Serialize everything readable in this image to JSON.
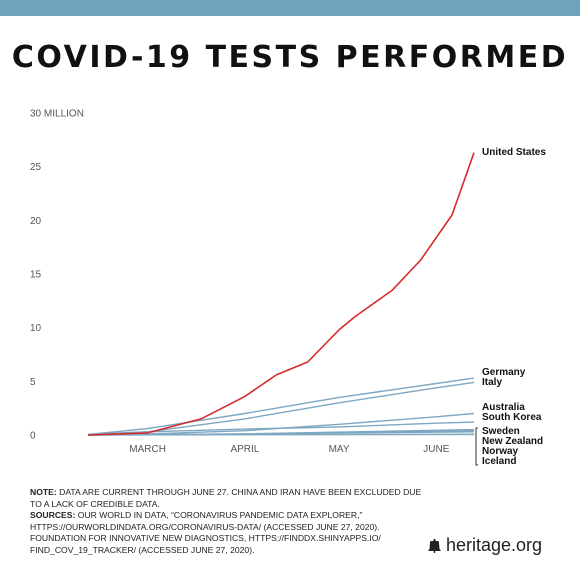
{
  "title": "COVID-19 TESTS PERFORMED",
  "colors": {
    "topbar": "#6fa3bd",
    "us": "#d62b2b",
    "others": "#7ea7c2",
    "axis": "#cfd8de"
  },
  "chart_data": {
    "type": "line",
    "ylim": [
      0,
      30
    ],
    "y_ticks": [
      0,
      5,
      10,
      15,
      20,
      25,
      30
    ],
    "y_tick_labels": [
      "0",
      "5",
      "10",
      "15",
      "20",
      "25",
      "30 MILLION"
    ],
    "x_ticks": [
      {
        "x": "2020-03-15",
        "label": "MARCH"
      },
      {
        "x": "2020-04-15",
        "label": "APRIL"
      },
      {
        "x": "2020-05-15",
        "label": "MAY"
      },
      {
        "x": "2020-06-15",
        "label": "JUNE"
      }
    ],
    "xlim": [
      "2020-02-25",
      "2020-06-27"
    ],
    "series": [
      {
        "name": "United States",
        "highlight": true,
        "points": [
          [
            "2020-02-25",
            0
          ],
          [
            "2020-03-15",
            0.2
          ],
          [
            "2020-04-01",
            1.5
          ],
          [
            "2020-04-15",
            3.6
          ],
          [
            "2020-04-25",
            5.6
          ],
          [
            "2020-05-05",
            6.8
          ],
          [
            "2020-05-15",
            9.8
          ],
          [
            "2020-05-20",
            11.0
          ],
          [
            "2020-06-01",
            13.5
          ],
          [
            "2020-06-10",
            16.3
          ],
          [
            "2020-06-20",
            20.5
          ],
          [
            "2020-06-27",
            26.3
          ]
        ]
      },
      {
        "name": "Germany",
        "points": [
          [
            "2020-02-25",
            0.05
          ],
          [
            "2020-03-15",
            0.6
          ],
          [
            "2020-04-15",
            2.0
          ],
          [
            "2020-05-15",
            3.5
          ],
          [
            "2020-06-15",
            4.8
          ],
          [
            "2020-06-27",
            5.3
          ]
        ]
      },
      {
        "name": "Italy",
        "points": [
          [
            "2020-02-25",
            0.05
          ],
          [
            "2020-03-15",
            0.3
          ],
          [
            "2020-04-15",
            1.5
          ],
          [
            "2020-05-15",
            3.0
          ],
          [
            "2020-06-15",
            4.4
          ],
          [
            "2020-06-27",
            4.9
          ]
        ]
      },
      {
        "name": "Australia",
        "points": [
          [
            "2020-02-25",
            0.0
          ],
          [
            "2020-03-15",
            0.1
          ],
          [
            "2020-04-15",
            0.4
          ],
          [
            "2020-05-15",
            1.0
          ],
          [
            "2020-06-15",
            1.7
          ],
          [
            "2020-06-27",
            2.0
          ]
        ]
      },
      {
        "name": "South Korea",
        "points": [
          [
            "2020-02-25",
            0.05
          ],
          [
            "2020-03-15",
            0.3
          ],
          [
            "2020-04-15",
            0.55
          ],
          [
            "2020-05-15",
            0.75
          ],
          [
            "2020-06-15",
            1.1
          ],
          [
            "2020-06-27",
            1.2
          ]
        ]
      },
      {
        "name": "Sweden",
        "points": [
          [
            "2020-02-25",
            0
          ],
          [
            "2020-04-15",
            0.1
          ],
          [
            "2020-06-27",
            0.5
          ]
        ]
      },
      {
        "name": "New Zealand",
        "points": [
          [
            "2020-02-25",
            0
          ],
          [
            "2020-04-15",
            0.08
          ],
          [
            "2020-06-27",
            0.4
          ]
        ]
      },
      {
        "name": "Norway",
        "points": [
          [
            "2020-02-25",
            0
          ],
          [
            "2020-04-15",
            0.1
          ],
          [
            "2020-06-27",
            0.3
          ]
        ]
      },
      {
        "name": "Iceland",
        "points": [
          [
            "2020-02-25",
            0
          ],
          [
            "2020-04-15",
            0.03
          ],
          [
            "2020-06-27",
            0.07
          ]
        ]
      }
    ],
    "labels": [
      {
        "text": "United States",
        "series": "United States"
      },
      {
        "text": "Germany",
        "series": "Germany"
      },
      {
        "text": "Italy",
        "series": "Italy"
      },
      {
        "text": "Australia",
        "series": "Australia"
      },
      {
        "text": "South Korea",
        "series": "South Korea"
      },
      {
        "text": "Sweden",
        "series": "Sweden"
      },
      {
        "text": "New Zealand",
        "series": "New Zealand"
      },
      {
        "text": "Norway",
        "series": "Norway"
      },
      {
        "text": "Iceland",
        "series": "Iceland"
      }
    ]
  },
  "notes": {
    "note_label": "NOTE:",
    "note_text": " DATA ARE CURRENT THROUGH JUNE 27. CHINA AND IRAN HAVE BEEN EXCLUDED DUE TO A LACK OF CREDIBLE DATA.",
    "sources_label": "SOURCES:",
    "sources_text": " OUR WORLD IN DATA, “CORONAVIRUS PANDEMIC DATA EXPLORER,” HTTPS://OURWORLDINDATA.ORG/CORONAVIRUS-DATA/ (ACCESSED JUNE 27, 2020). FOUNDATION FOR INNOVATIVE NEW DIAGNOSTICS, HTTPS://FINDDX.SHINYAPPS.IO/ FIND_COV_19_TRACKER/ (ACCESSED JUNE 27, 2020)."
  },
  "brand": {
    "text": "heritage.org",
    "icon": "liberty-bell-icon"
  }
}
